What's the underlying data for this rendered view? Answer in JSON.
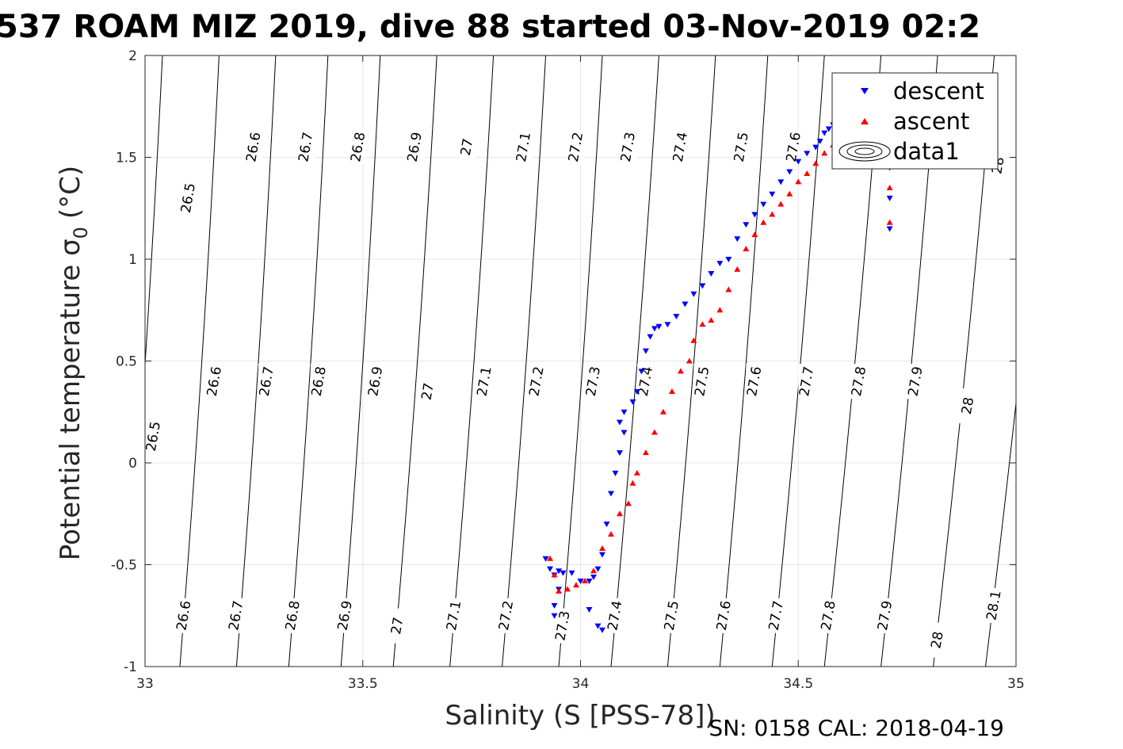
{
  "chart_data": {
    "type": "scatter",
    "title": "537 ROAM MIZ 2019, dive 88 started 03-Nov-2019 02:2",
    "xlabel": "Salinity (S [PSS-78])",
    "ylabel": "Potential temperature σ",
    "ylabel_sub": "0",
    "ylabel_unit": "(°C)",
    "footer": "SN: 0158  CAL: 2018-04-19",
    "xlim": [
      33,
      35
    ],
    "ylim": [
      -1,
      2
    ],
    "xticks": [
      33,
      33.5,
      34,
      34.5,
      35
    ],
    "xtick_labels": [
      "33",
      "33.5",
      "34",
      "34.5",
      "35"
    ],
    "yticks": [
      -1,
      -0.5,
      0,
      0.5,
      1,
      1.5,
      2
    ],
    "ytick_labels": [
      "-1",
      "-0.5",
      "0",
      "0.5",
      "1",
      "1.5",
      "2"
    ],
    "grid": true,
    "legend_placement": "top-right",
    "legend": [
      "descent",
      "ascent",
      "data1"
    ],
    "colors": {
      "descent": "#0000ff",
      "ascent": "#ff0000",
      "contour": "#000000",
      "grid": "#e6e6e6"
    },
    "contours": {
      "levels": [
        "26.5",
        "26.6",
        "26.7",
        "26.8",
        "26.9",
        "27",
        "27.1",
        "27.2",
        "27.3",
        "27.4",
        "27.5",
        "27.6",
        "27.7",
        "27.8",
        "27.9",
        "28",
        "28.1"
      ],
      "lines": [
        {
          "level": "26.5",
          "x_bottom": 32.95,
          "x_top": 33.04
        },
        {
          "level": "26.6",
          "x_bottom": 33.08,
          "x_top": 33.17
        },
        {
          "level": "26.7",
          "x_bottom": 33.21,
          "x_top": 33.3
        },
        {
          "level": "26.8",
          "x_bottom": 33.33,
          "x_top": 33.42
        },
        {
          "level": "26.9",
          "x_bottom": 33.45,
          "x_top": 33.54
        },
        {
          "level": "27",
          "x_bottom": 33.57,
          "x_top": 33.67
        },
        {
          "level": "27.1",
          "x_bottom": 33.7,
          "x_top": 33.8
        },
        {
          "level": "27.2",
          "x_bottom": 33.82,
          "x_top": 33.92
        },
        {
          "level": "27.3",
          "x_bottom": 33.95,
          "x_top": 34.05
        },
        {
          "level": "27.4",
          "x_bottom": 34.07,
          "x_top": 34.18
        },
        {
          "level": "27.5",
          "x_bottom": 34.2,
          "x_top": 34.31
        },
        {
          "level": "27.6",
          "x_bottom": 34.32,
          "x_top": 34.43
        },
        {
          "level": "27.7",
          "x_bottom": 34.44,
          "x_top": 34.56
        },
        {
          "level": "27.8",
          "x_bottom": 34.56,
          "x_top": 34.69
        },
        {
          "level": "27.9",
          "x_bottom": 34.69,
          "x_top": 34.82
        },
        {
          "level": "28",
          "x_bottom": 34.81,
          "x_top": 34.95
        },
        {
          "level": "28.1",
          "x_bottom": 34.93,
          "x_top": 35.08
        }
      ],
      "labels": [
        {
          "text": "26.5",
          "x": 33.1,
          "y": 1.3
        },
        {
          "text": "26.6",
          "x": 33.25,
          "y": 1.55
        },
        {
          "text": "26.7",
          "x": 33.37,
          "y": 1.55
        },
        {
          "text": "26.8",
          "x": 33.49,
          "y": 1.55
        },
        {
          "text": "26.9",
          "x": 33.62,
          "y": 1.55
        },
        {
          "text": "27",
          "x": 33.74,
          "y": 1.55
        },
        {
          "text": "27.1",
          "x": 33.87,
          "y": 1.55
        },
        {
          "text": "27.2",
          "x": 33.99,
          "y": 1.55
        },
        {
          "text": "27.3",
          "x": 34.11,
          "y": 1.55
        },
        {
          "text": "27.4",
          "x": 34.23,
          "y": 1.55
        },
        {
          "text": "27.5",
          "x": 34.37,
          "y": 1.55
        },
        {
          "text": "27.6",
          "x": 34.49,
          "y": 1.55
        },
        {
          "text": "28",
          "x": 34.96,
          "y": 1.46
        },
        {
          "text": "26.5",
          "x": 33.02,
          "y": 0.13
        },
        {
          "text": "26.6",
          "x": 33.16,
          "y": 0.4
        },
        {
          "text": "26.7",
          "x": 33.28,
          "y": 0.4
        },
        {
          "text": "26.8",
          "x": 33.4,
          "y": 0.4
        },
        {
          "text": "26.9",
          "x": 33.53,
          "y": 0.4
        },
        {
          "text": "27",
          "x": 33.65,
          "y": 0.35
        },
        {
          "text": "27.1",
          "x": 33.78,
          "y": 0.4
        },
        {
          "text": "27.2",
          "x": 33.9,
          "y": 0.4
        },
        {
          "text": "27.3",
          "x": 34.03,
          "y": 0.4
        },
        {
          "text": "27.4",
          "x": 34.15,
          "y": 0.4
        },
        {
          "text": "27.5",
          "x": 34.28,
          "y": 0.4
        },
        {
          "text": "27.6",
          "x": 34.4,
          "y": 0.4
        },
        {
          "text": "27.7",
          "x": 34.52,
          "y": 0.4
        },
        {
          "text": "27.8",
          "x": 34.64,
          "y": 0.4
        },
        {
          "text": "27.9",
          "x": 34.77,
          "y": 0.4
        },
        {
          "text": "28",
          "x": 34.89,
          "y": 0.28
        },
        {
          "text": "26.6",
          "x": 33.09,
          "y": -0.75
        },
        {
          "text": "26.7",
          "x": 33.21,
          "y": -0.75
        },
        {
          "text": "26.8",
          "x": 33.34,
          "y": -0.75
        },
        {
          "text": "26.9",
          "x": 33.46,
          "y": -0.75
        },
        {
          "text": "27",
          "x": 33.58,
          "y": -0.8
        },
        {
          "text": "27.1",
          "x": 33.71,
          "y": -0.75
        },
        {
          "text": "27.2",
          "x": 33.83,
          "y": -0.75
        },
        {
          "text": "27.3",
          "x": 33.96,
          "y": -0.8
        },
        {
          "text": "27.4",
          "x": 34.08,
          "y": -0.75
        },
        {
          "text": "27.5",
          "x": 34.21,
          "y": -0.75
        },
        {
          "text": "27.6",
          "x": 34.33,
          "y": -0.75
        },
        {
          "text": "27.7",
          "x": 34.45,
          "y": -0.75
        },
        {
          "text": "27.8",
          "x": 34.57,
          "y": -0.75
        },
        {
          "text": "27.9",
          "x": 34.7,
          "y": -0.75
        },
        {
          "text": "28",
          "x": 34.82,
          "y": -0.87
        },
        {
          "text": "28.1",
          "x": 34.95,
          "y": -0.7
        }
      ]
    },
    "series": [
      {
        "name": "descent",
        "marker": "triangle-down",
        "x": [
          33.92,
          33.93,
          33.94,
          33.95,
          33.96,
          33.98,
          34.0,
          34.02,
          34.03,
          34.04,
          34.05,
          34.06,
          34.07,
          34.08,
          34.09,
          34.1,
          34.09,
          34.1,
          34.12,
          34.13,
          34.14,
          34.15,
          34.16,
          34.17,
          34.18,
          34.2,
          34.22,
          34.24,
          34.26,
          34.28,
          34.3,
          34.32,
          34.34,
          34.36,
          34.38,
          34.4,
          34.42,
          34.44,
          34.46,
          34.48,
          34.5,
          34.52,
          34.54,
          34.55,
          34.56,
          34.57,
          34.58,
          34.6,
          34.62,
          34.65,
          34.68,
          34.7,
          34.71,
          34.71,
          34.71,
          33.95,
          33.94,
          33.94,
          34.02,
          34.04,
          34.05
        ],
        "y": [
          -0.47,
          -0.52,
          -0.55,
          -0.53,
          -0.54,
          -0.54,
          -0.58,
          -0.58,
          -0.56,
          -0.52,
          -0.45,
          -0.3,
          -0.15,
          -0.05,
          0.05,
          0.15,
          0.2,
          0.25,
          0.3,
          0.35,
          0.45,
          0.55,
          0.62,
          0.66,
          0.67,
          0.68,
          0.72,
          0.78,
          0.83,
          0.87,
          0.93,
          0.98,
          1.0,
          1.1,
          1.17,
          1.22,
          1.27,
          1.32,
          1.38,
          1.43,
          1.48,
          1.52,
          1.55,
          1.58,
          1.62,
          1.64,
          1.66,
          1.68,
          1.66,
          1.63,
          1.6,
          1.55,
          1.45,
          1.3,
          1.15,
          -0.62,
          -0.7,
          -0.75,
          -0.72,
          -0.8,
          -0.82
        ]
      },
      {
        "name": "ascent",
        "marker": "triangle-up",
        "x": [
          33.93,
          33.94,
          33.95,
          33.97,
          33.99,
          34.01,
          34.03,
          34.05,
          34.07,
          34.09,
          34.11,
          34.12,
          34.13,
          34.15,
          34.17,
          34.19,
          34.21,
          34.23,
          34.25,
          34.26,
          34.28,
          34.3,
          34.32,
          34.34,
          34.36,
          34.38,
          34.4,
          34.42,
          34.44,
          34.46,
          34.48,
          34.5,
          34.52,
          34.54,
          34.56,
          34.58,
          34.6,
          34.62,
          34.64,
          34.66,
          34.68,
          34.7,
          34.71,
          34.71,
          34.71
        ],
        "y": [
          -0.47,
          -0.55,
          -0.63,
          -0.62,
          -0.6,
          -0.58,
          -0.53,
          -0.42,
          -0.35,
          -0.25,
          -0.2,
          -0.1,
          -0.05,
          0.05,
          0.15,
          0.25,
          0.35,
          0.45,
          0.5,
          0.6,
          0.68,
          0.7,
          0.75,
          0.85,
          0.95,
          1.05,
          1.12,
          1.18,
          1.22,
          1.27,
          1.32,
          1.38,
          1.42,
          1.47,
          1.52,
          1.56,
          1.6,
          1.62,
          1.63,
          1.64,
          1.65,
          1.6,
          1.5,
          1.35,
          1.18
        ]
      }
    ]
  }
}
